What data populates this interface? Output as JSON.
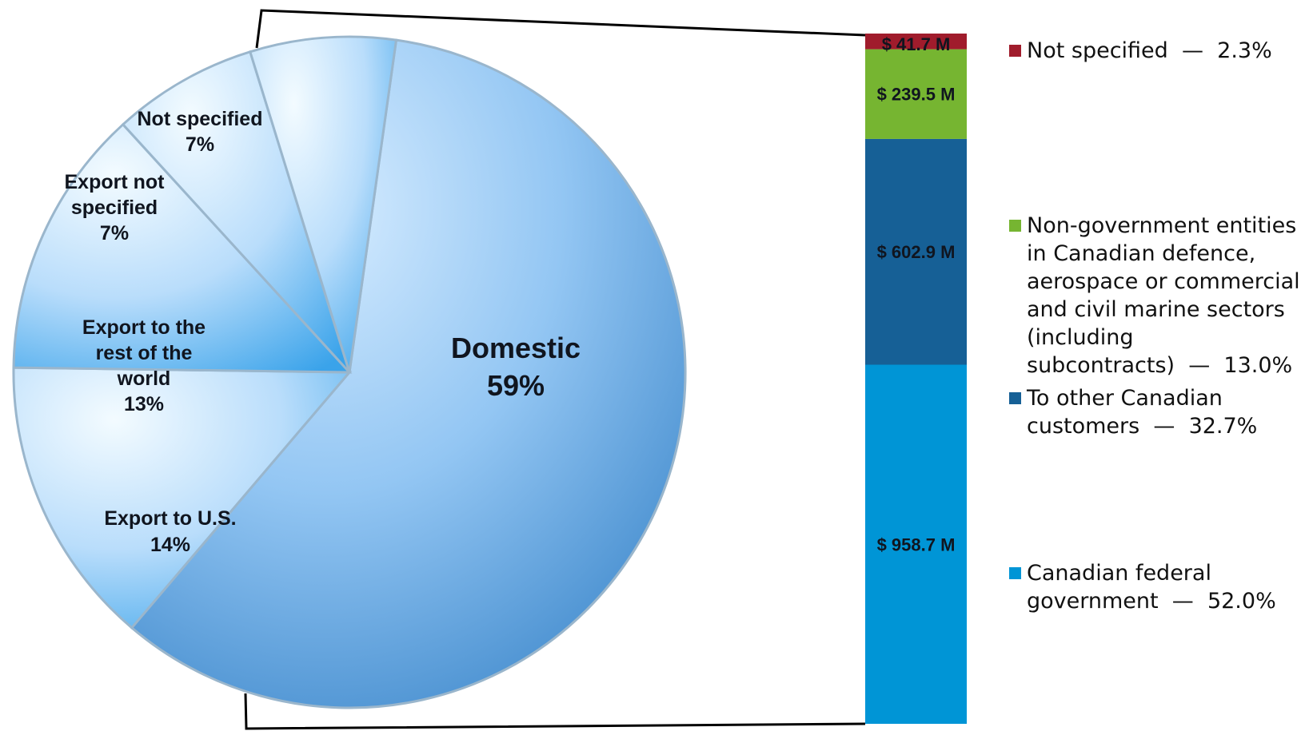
{
  "chart_data": [
    {
      "type": "pie",
      "slices": [
        {
          "label": "Domestic",
          "value": 59
        },
        {
          "label": "Export to U.S.",
          "value": 14
        },
        {
          "label": "Export to the rest of the world",
          "value": 13
        },
        {
          "label": "Export not specified",
          "value": 7
        },
        {
          "label": "Not specified",
          "value": 7
        }
      ],
      "value_labels": [
        "59%",
        "14%",
        "13%",
        "7%",
        "7%"
      ],
      "colors": {
        "base": "#8fc4f4",
        "edge": "#2d7fc7"
      }
    },
    {
      "type": "bar",
      "stacked": true,
      "categories": [
        "Domestic"
      ],
      "series": [
        {
          "name": "Canadian federal government",
          "value": 958.7,
          "label": "$ 958.7 M",
          "percent": "52.0%",
          "color": "#0095d6"
        },
        {
          "name": "To other Canadian customers",
          "value": 602.9,
          "label": "$ 602.9 M",
          "percent": "32.7%",
          "color": "#166096"
        },
        {
          "name": "Non-government entities in Canadian defence, aerospace or commercial and civil marine sectors (including subcontracts)",
          "value": 239.5,
          "label": "$ 239.5 M",
          "percent": "13.0%",
          "color": "#76b531"
        },
        {
          "name": "Not specified",
          "value": 41.7,
          "label": "$ 41.7 M",
          "percent": "2.3%",
          "color": "#a01c2c"
        }
      ],
      "legend_separator": "—"
    }
  ]
}
